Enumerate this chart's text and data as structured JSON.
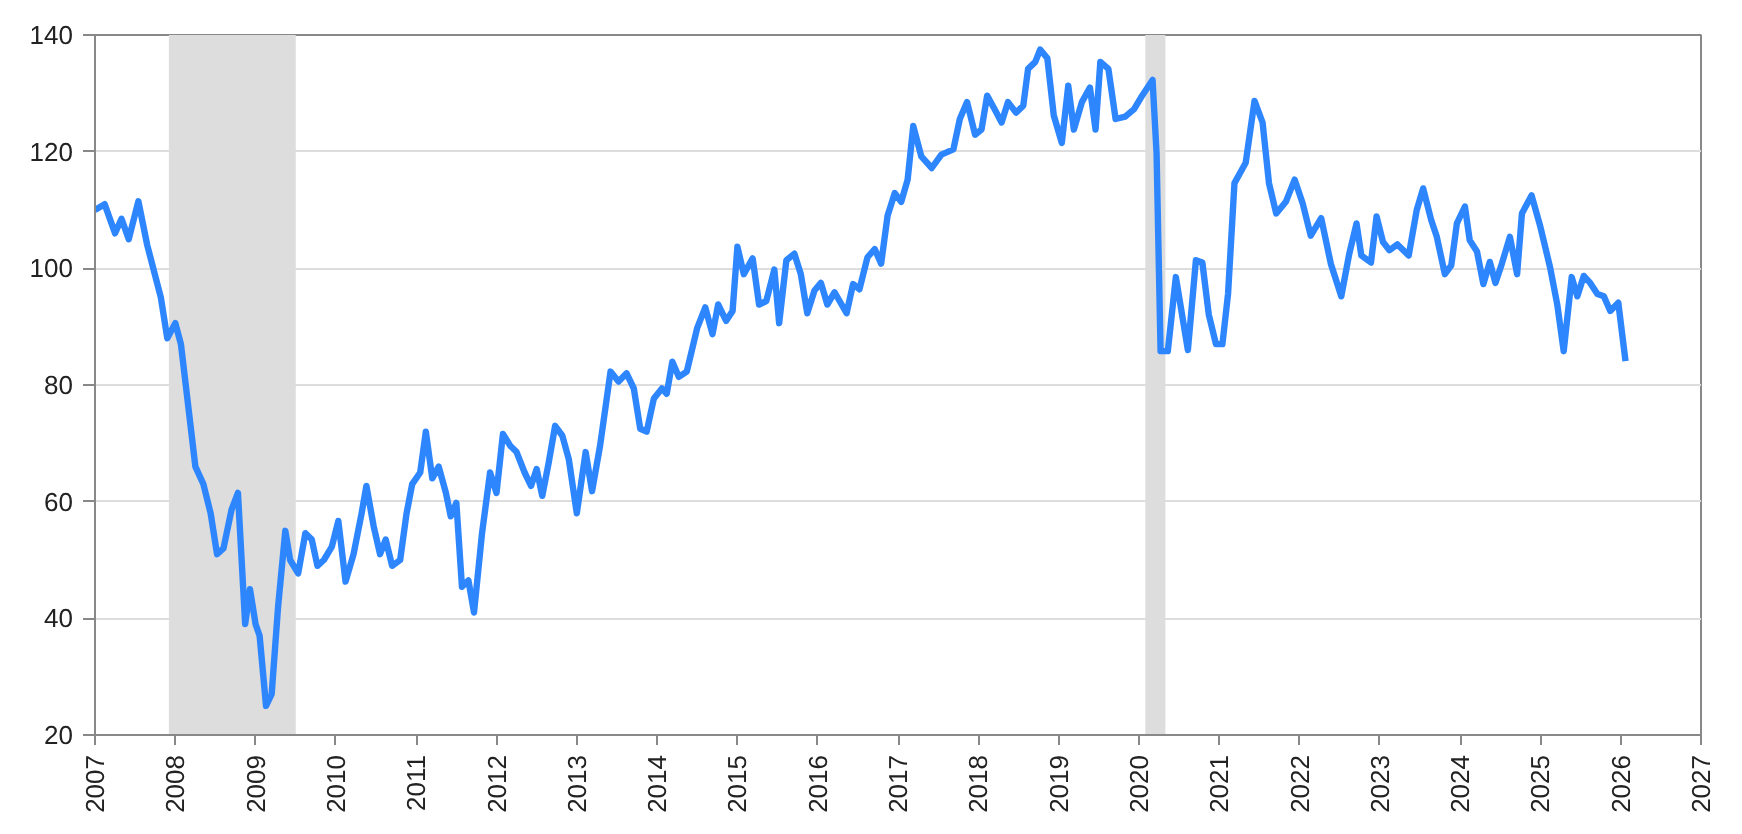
{
  "chart_data": {
    "type": "line",
    "xlim": [
      2007,
      2027
    ],
    "ylim": [
      20,
      140
    ],
    "xticks": [
      2007,
      2008,
      2009,
      2010,
      2011,
      2012,
      2013,
      2014,
      2015,
      2016,
      2017,
      2018,
      2019,
      2020,
      2021,
      2022,
      2023,
      2024,
      2025,
      2026,
      2027
    ],
    "yticks": [
      20,
      40,
      60,
      80,
      100,
      120,
      140
    ],
    "grid": "y",
    "bands": [
      {
        "axis": "x",
        "from": 2007.92,
        "to": 2009.5,
        "color": "#dddddd"
      },
      {
        "axis": "x",
        "from": 2020.08,
        "to": 2020.33,
        "color": "#dddddd"
      }
    ],
    "series": [
      {
        "color": "#2e86ff",
        "x": [
          2007.0,
          2007.12,
          2007.25,
          2007.33,
          2007.42,
          2007.54,
          2007.65,
          2007.82,
          2007.9,
          2008.0,
          2008.07,
          2008.25,
          2008.35,
          2008.44,
          2008.52,
          2008.6,
          2008.7,
          2008.78,
          2008.87,
          2008.93,
          2009.0,
          2009.05,
          2009.13,
          2009.2,
          2009.28,
          2009.37,
          2009.43,
          2009.53,
          2009.62,
          2009.7,
          2009.77,
          2009.85,
          2009.95,
          2010.03,
          2010.12,
          2010.22,
          2010.32,
          2010.38,
          2010.47,
          2010.55,
          2010.62,
          2010.7,
          2010.8,
          2010.88,
          2010.95,
          2011.05,
          2011.12,
          2011.2,
          2011.28,
          2011.37,
          2011.43,
          2011.5,
          2011.57,
          2011.65,
          2011.72,
          2011.82,
          2011.92,
          2012.0,
          2012.08,
          2012.17,
          2012.25,
          2012.35,
          2012.43,
          2012.5,
          2012.57,
          2012.65,
          2012.73,
          2012.82,
          2012.9,
          2013.0,
          2013.11,
          2013.19,
          2013.29,
          2013.42,
          2013.52,
          2013.62,
          2013.71,
          2013.79,
          2013.87,
          2013.96,
          2014.06,
          2014.12,
          2014.19,
          2014.27,
          2014.37,
          2014.5,
          2014.6,
          2014.69,
          2014.76,
          2014.86,
          2014.94,
          2015.0,
          2015.08,
          2015.19,
          2015.27,
          2015.36,
          2015.46,
          2015.52,
          2015.61,
          2015.71,
          2015.79,
          2015.87,
          2015.96,
          2016.04,
          2016.12,
          2016.21,
          2016.36,
          2016.44,
          2016.52,
          2016.62,
          2016.71,
          2016.79,
          2016.87,
          2016.96,
          2017.04,
          2017.12,
          2017.19,
          2017.29,
          2017.42,
          2017.54,
          2017.69,
          2017.77,
          2017.86,
          2017.96,
          2018.04,
          2018.11,
          2018.21,
          2018.29,
          2018.37,
          2018.47,
          2018.56,
          2018.62,
          2018.71,
          2018.77,
          2018.86,
          2018.94,
          2019.04,
          2019.12,
          2019.19,
          2019.29,
          2019.39,
          2019.46,
          2019.52,
          2019.62,
          2019.71,
          2019.83,
          2019.94,
          2020.04,
          2020.17,
          2020.22,
          2020.27,
          2020.36,
          2020.46,
          2020.61,
          2020.71,
          2020.79,
          2020.87,
          2020.96,
          2021.04,
          2021.11,
          2021.19,
          2021.33,
          2021.44,
          2021.54,
          2021.62,
          2021.71,
          2021.83,
          2021.94,
          2022.04,
          2022.14,
          2022.27,
          2022.39,
          2022.52,
          2022.62,
          2022.71,
          2022.77,
          2022.89,
          2022.96,
          2023.04,
          2023.12,
          2023.22,
          2023.36,
          2023.46,
          2023.54,
          2023.64,
          2023.71,
          2023.81,
          2023.89,
          2023.96,
          2024.06,
          2024.12,
          2024.21,
          2024.29,
          2024.37,
          2024.44,
          2024.52,
          2024.62,
          2024.71,
          2024.77,
          2024.89,
          2025.0,
          2025.12,
          2025.21,
          2025.29,
          2025.39,
          2025.46,
          2025.54,
          2025.62,
          2025.71,
          2025.79,
          2025.87,
          2025.97,
          2026.06
        ],
        "values": [
          110,
          111,
          106,
          108.5,
          105,
          111.5,
          104,
          95,
          88,
          90.6,
          87,
          66,
          63,
          58,
          51,
          52,
          58.6,
          61.5,
          39,
          45,
          39,
          37,
          25,
          27,
          42,
          55,
          50,
          47.7,
          54.6,
          53.5,
          49,
          50,
          52.3,
          56.7,
          46.3,
          51,
          58,
          62.7,
          55.8,
          51,
          53.5,
          49,
          50,
          58,
          63,
          65,
          72,
          64,
          66,
          61.5,
          57.5,
          59.8,
          45.4,
          46.5,
          41,
          54.6,
          65,
          61.5,
          71.6,
          69.6,
          68.5,
          65,
          62.7,
          65.6,
          61,
          66.7,
          73,
          71.3,
          67.3,
          58,
          68.5,
          61.8,
          69.6,
          82.3,
          80.6,
          82,
          79.4,
          72.5,
          72,
          77.7,
          79.4,
          78.5,
          84,
          81.4,
          82.3,
          89.8,
          93.3,
          88.7,
          93.8,
          91,
          92.7,
          103.7,
          99,
          101.7,
          93.8,
          94.4,
          99.8,
          90.6,
          101.4,
          102.5,
          99,
          92.3,
          96.2,
          97.5,
          93.8,
          95.9,
          92.3,
          97.3,
          96.4,
          101.9,
          103.3,
          100.8,
          109,
          112.9,
          111.4,
          115.2,
          124.4,
          119.2,
          117.2,
          119.5,
          120.4,
          125.6,
          128.5,
          122.9,
          123.8,
          129.6,
          127.1,
          125,
          128.5,
          126.7,
          127.9,
          134.2,
          135.4,
          137.5,
          136,
          126.2,
          121.5,
          131.3,
          123.8,
          128.5,
          131,
          123.8,
          135.4,
          134.2,
          125.6,
          126,
          127.3,
          129.6,
          132.3,
          119.8,
          85.8,
          85.8,
          98.5,
          86,
          101.4,
          101,
          92.1,
          87,
          87,
          95.6,
          114.6,
          118.1,
          128.7,
          125,
          114.6,
          109.4,
          111.4,
          115.2,
          111.1,
          105.6,
          108.6,
          100.8,
          95.2,
          102.5,
          107.7,
          102.2,
          101,
          108.9,
          104.5,
          103.1,
          104.1,
          102.2,
          110,
          113.7,
          108.3,
          105.4,
          99,
          100.5,
          107.7,
          110.6,
          104.8,
          102.9,
          97.3,
          101.1,
          97.5,
          100.8,
          105.4,
          99,
          109.4,
          112.5,
          107.1,
          100.2,
          93.8,
          85.8,
          98.5,
          95.2,
          98.7,
          97.5,
          95.6,
          95.2,
          92.7,
          94.1,
          84.1
        ]
      }
    ]
  }
}
